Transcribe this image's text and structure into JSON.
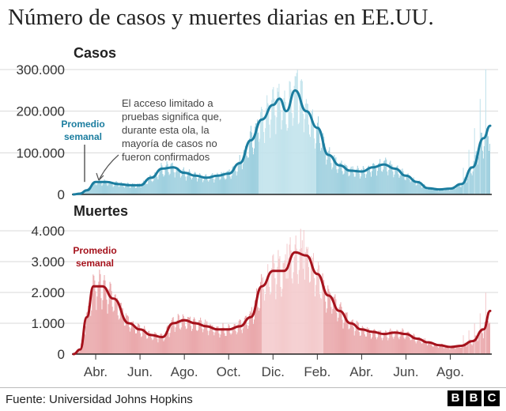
{
  "title": "Número de casos y muertes diarias en EE.UU.",
  "source": "Fuente: Universidad Johns Hopkins",
  "logo_text": "BBC",
  "colors": {
    "cases_bar": "#9fd0df",
    "cases_bar_peak": "#c2e3ec",
    "cases_line": "#1b7d9f",
    "cases_label": "#1b7d9f",
    "deaths_bar": "#eaa9ac",
    "deaths_bar_peak": "#f4cbcd",
    "deaths_line": "#a5121c",
    "deaths_label": "#a5121c",
    "grid": "#d9d9d9",
    "text": "#222222"
  },
  "chart_data": [
    {
      "type": "bar",
      "title": "Casos",
      "overlay": "line",
      "avg_label": "Promedio semanal",
      "annotation": "El acceso limitado a pruebas significa que, durante esta ola, la mayoría de casos no fueron confirmados",
      "annotation_lines": [
        "El acceso limitado a",
        "pruebas significa que,",
        "durante esta ola, la",
        "mayoría de casos no",
        "fueron confirmados"
      ],
      "ylim": [
        0,
        300000
      ],
      "yticks": [
        0,
        100000,
        200000,
        300000
      ],
      "ytick_labels": [
        "0",
        "100.000",
        "200.000",
        "300.000"
      ],
      "grid": true,
      "series": [
        {
          "name": "Promedio semanal",
          "kind": "line",
          "x": [
            0.0,
            0.3,
            0.6,
            1.0,
            1.5,
            2.0,
            2.6,
            3.0,
            3.5,
            4.0,
            4.5,
            5.0,
            5.5,
            6.0,
            6.5,
            7.0,
            7.5,
            8.0,
            8.5,
            9.0,
            9.3,
            9.6,
            10.0,
            10.5,
            11.0,
            11.5,
            12.0,
            12.5,
            13.0,
            13.5,
            14.0,
            14.5,
            15.0,
            15.5,
            16.0,
            16.5,
            17.0,
            17.5,
            18.0,
            18.5,
            18.8
          ],
          "y": [
            0,
            2000,
            10000,
            30000,
            30000,
            25000,
            22000,
            22000,
            40000,
            62000,
            65000,
            52000,
            45000,
            40000,
            45000,
            50000,
            75000,
            130000,
            180000,
            215000,
            230000,
            200000,
            250000,
            200000,
            160000,
            95000,
            70000,
            57000,
            55000,
            65000,
            72000,
            62000,
            45000,
            30000,
            15000,
            12000,
            14000,
            25000,
            65000,
            135000,
            165000
          ]
        }
      ]
    },
    {
      "type": "bar",
      "title": "Muertes",
      "overlay": "line",
      "avg_label": "Promedio semanal",
      "ylim": [
        0,
        4000
      ],
      "yticks": [
        0,
        1000,
        2000,
        3000,
        4000
      ],
      "ytick_labels": [
        "0",
        "1.000",
        "2.000",
        "3.000",
        "4.000"
      ],
      "grid": true,
      "series": [
        {
          "name": "Promedio semanal",
          "kind": "line",
          "x": [
            0.0,
            0.3,
            0.6,
            0.9,
            1.3,
            1.8,
            2.5,
            3.0,
            3.5,
            4.0,
            4.5,
            5.0,
            5.5,
            6.0,
            6.5,
            7.0,
            7.5,
            8.0,
            8.5,
            9.0,
            9.5,
            10.0,
            10.5,
            11.0,
            11.5,
            12.0,
            12.5,
            13.0,
            13.5,
            14.0,
            14.5,
            15.0,
            15.5,
            16.0,
            16.5,
            17.0,
            17.5,
            18.0,
            18.5,
            18.8
          ],
          "y": [
            0,
            150,
            1200,
            2200,
            2200,
            1800,
            1000,
            800,
            620,
            550,
            1000,
            1100,
            1000,
            900,
            800,
            800,
            900,
            1200,
            2200,
            2700,
            2700,
            3300,
            3200,
            2600,
            1900,
            1400,
            1000,
            800,
            720,
            650,
            700,
            650,
            500,
            380,
            290,
            230,
            270,
            420,
            800,
            1400
          ]
        }
      ]
    }
  ],
  "x_axis": {
    "months": [
      "Abr.",
      "Jun.",
      "Ago.",
      "Oct.",
      "Dic.",
      "Feb.",
      "Abr.",
      "Jun.",
      "Ago."
    ],
    "month_positions": [
      1.0,
      3.0,
      5.0,
      7.0,
      9.0,
      11.0,
      13.0,
      15.0,
      17.0
    ]
  }
}
